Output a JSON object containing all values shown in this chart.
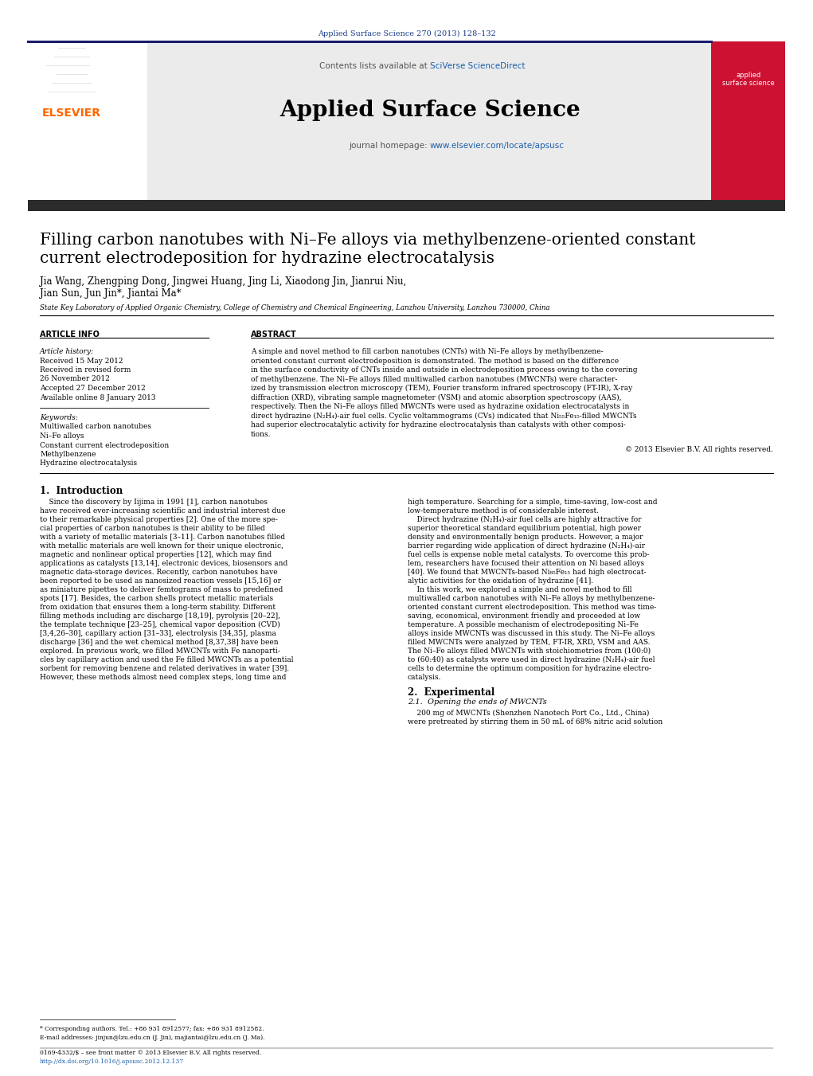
{
  "journal_ref": "Applied Surface Science 270 (2013) 128–132",
  "journal_ref_color": "#1a3a8a",
  "sciverse_color": "#1a5faa",
  "journal_name": "Applied Surface Science",
  "journal_homepage_url_color": "#1a5faa",
  "title_line1": "Filling carbon nanotubes with Ni–Fe alloys via methylbenzene-oriented constant",
  "title_line2": "current electrodeposition for hydrazine electrocatalysis",
  "authors_line1": "Jia Wang, Zhengping Dong, Jingwei Huang, Jing Li, Xiaodong Jin, Jianrui Niu,",
  "authors_line2": "Jian Sun, Jun Jin*, Jiantai Ma*",
  "affiliation": "State Key Laboratory of Applied Organic Chemistry, College of Chemistry and Chemical Engineering, Lanzhou University, Lanzhou 730000, China",
  "article_info_header": "ARTICLE INFO",
  "abstract_header": "ABSTRACT",
  "article_history_label": "Article history:",
  "received": "Received 15 May 2012",
  "received_revised": "Received in revised form",
  "received_revised_date": "26 November 2012",
  "accepted": "Accepted 27 December 2012",
  "available": "Available online 8 January 2013",
  "keywords_label": "Keywords:",
  "keywords": [
    "Multiwalled carbon nanotubes",
    "Ni–Fe alloys",
    "Constant current electrodeposition",
    "Methylbenzene",
    "Hydrazine electrocatalysis"
  ],
  "abstract_lines": [
    "A simple and novel method to fill carbon nanotubes (CNTs) with Ni–Fe alloys by methylbenzene-",
    "oriented constant current electrodeposition is demonstrated. The method is based on the difference",
    "in the surface conductivity of CNTs inside and outside in electrodeposition process owing to the covering",
    "of methylbenzene. The Ni–Fe alloys filled multiwalled carbon nanotubes (MWCNTs) were character-",
    "ized by transmission electron microscopy (TEM), Fourier transform infrared spectroscopy (FT-IR), X-ray",
    "diffraction (XRD), vibrating sample magnetometer (VSM) and atomic absorption spectroscopy (AAS),",
    "respectively. Then the Ni–Fe alloys filled MWCNTs were used as hydrazine oxidation electrocatalysts in",
    "direct hydrazine (N₂H₄)-air fuel cells. Cyclic voltammograms (CVs) indicated that Ni₅₅Fe₁₅-filled MWCNTs",
    "had superior electrocatalytic activity for hydrazine electrocatalysis than catalysts with other composi-",
    "tions."
  ],
  "copyright": "© 2013 Elsevier B.V. All rights reserved.",
  "section1_title": "1.  Introduction",
  "left_col_lines": [
    "    Since the discovery by Iijima in 1991 [1], carbon nanotubes",
    "have received ever-increasing scientific and industrial interest due",
    "to their remarkable physical properties [2]. One of the more spe-",
    "cial properties of carbon nanotubes is their ability to be filled",
    "with a variety of metallic materials [3–11]. Carbon nanotubes filled",
    "with metallic materials are well known for their unique electronic,",
    "magnetic and nonlinear optical properties [12], which may find",
    "applications as catalysts [13,14], electronic devices, biosensors and",
    "magnetic data-storage devices. Recently, carbon nanotubes have",
    "been reported to be used as nanosized reaction vessels [15,16] or",
    "as miniature pipettes to deliver femtograms of mass to predefined",
    "spots [17]. Besides, the carbon shells protect metallic materials",
    "from oxidation that ensures them a long-term stability. Different",
    "filling methods including arc discharge [18,19], pyrolysis [20–22],",
    "the template technique [23–25], chemical vapor deposition (CVD)",
    "[3,4,26–30], capillary action [31–33], electrolysis [34,35], plasma",
    "discharge [36] and the wet chemical method [8,37,38] have been",
    "explored. In previous work, we filled MWCNTs with Fe nanoparti-",
    "cles by capillary action and used the Fe filled MWCNTs as a potential",
    "sorbent for removing benzene and related derivatives in water [39].",
    "However, these methods almost need complex steps, long time and"
  ],
  "right_col_lines": [
    "high temperature. Searching for a simple, time-saving, low-cost and",
    "low-temperature method is of considerable interest.",
    "    Direct hydrazine (N₂H₄)-air fuel cells are highly attractive for",
    "superior theoretical standard equilibrium potential, high power",
    "density and environmentally benign products. However, a major",
    "barrier regarding wide application of direct hydrazine (N₂H₄)-air",
    "fuel cells is expense noble metal catalysts. To overcome this prob-",
    "lem, researchers have focused their attention on Ni based alloys",
    "[40]. We found that MWCNTs-based Ni₈₅Fe₁₅ had high electrocat-",
    "alytic activities for the oxidation of hydrazine [41].",
    "    In this work, we explored a simple and novel method to fill",
    "multiwalled carbon nanotubes with Ni–Fe alloys by methylbenzene-",
    "oriented constant current electrodeposition. This method was time-",
    "saving, economical, environment friendly and proceeded at low",
    "temperature. A possible mechanism of electrodepositing Ni–Fe",
    "alloys inside MWCNTs was discussed in this study. The Ni–Fe alloys",
    "filled MWCNTs were analyzed by TEM, FT-IR, XRD, VSM and AAS.",
    "The Ni–Fe alloys filled MWCNTs with stoichiometries from (100:0)",
    "to (60:40) as catalysts were used in direct hydrazine (N₂H₄)-air fuel",
    "cells to determine the optimum composition for hydrazine electro-",
    "catalysis."
  ],
  "section2_title": "2.  Experimental",
  "section21_title": "2.1.  Opening the ends of MWCNTs",
  "section21_lines": [
    "    200 mg of MWCNTs (Shenzhen Nanotech Port Co., Ltd., China)",
    "were pretreated by stirring them in 50 mL of 68% nitric acid solution"
  ],
  "footnote_line1": "* Corresponding authors. Tel.: +86 931 8912577; fax: +86 931 8912582.",
  "footnote_line2": "E-mail addresses: jinjun@lzu.edu.cn (J. Jin), majiantai@lzu.edu.cn (J. Ma).",
  "footer_line1": "0169-4332/$ – see front matter © 2013 Elsevier B.V. All rights reserved.",
  "footer_line2": "http://dx.doi.org/10.1016/j.apsusc.2012.12.137",
  "footer_url_color": "#1a5faa",
  "bg_color": "#ffffff",
  "gray_header_bg": "#ebebeb",
  "dark_bar_color": "#2b2b2b",
  "top_rule_color": "#1a1a6e",
  "elsevier_orange": "#FF6600",
  "cover_red": "#cc1133"
}
